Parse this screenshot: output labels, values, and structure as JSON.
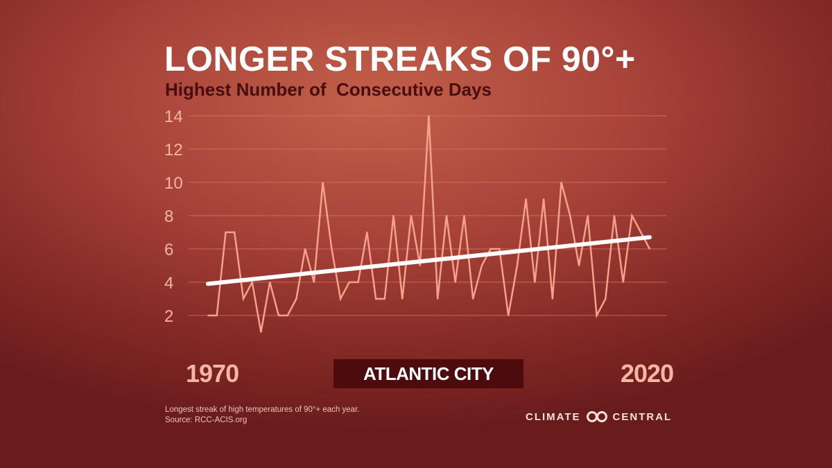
{
  "chart_data": {
    "type": "line",
    "title": "LONGER STREAKS OF 90°+",
    "subtitle": "Highest Number of  Consecutive Days",
    "x_start_label": "1970",
    "x_end_label": "2020",
    "location": "ATLANTIC CITY",
    "ylim": [
      0,
      14
    ],
    "y_ticks": [
      "2",
      "4",
      "6",
      "8",
      "10",
      "12",
      "14"
    ],
    "grid": true,
    "x": [
      1970,
      1971,
      1972,
      1973,
      1974,
      1975,
      1976,
      1977,
      1978,
      1979,
      1980,
      1981,
      1982,
      1983,
      1984,
      1985,
      1986,
      1987,
      1988,
      1989,
      1990,
      1991,
      1992,
      1993,
      1994,
      1995,
      1996,
      1997,
      1998,
      1999,
      2000,
      2001,
      2002,
      2003,
      2004,
      2005,
      2006,
      2007,
      2008,
      2009,
      2010,
      2011,
      2012,
      2013,
      2014,
      2015,
      2016,
      2017,
      2018,
      2019,
      2020
    ],
    "values": [
      2,
      2,
      7,
      7,
      3,
      4,
      1,
      4,
      2,
      2,
      3,
      6,
      4,
      10,
      6,
      3,
      4,
      4,
      7,
      3,
      3,
      8,
      3,
      8,
      5,
      14,
      3,
      8,
      4,
      8,
      3,
      5,
      6,
      6,
      2,
      5,
      9,
      4,
      9,
      3,
      10,
      8,
      5,
      8,
      2,
      3,
      8,
      4,
      8,
      7,
      6
    ],
    "trend": {
      "start": 3.9,
      "end": 6.7
    },
    "line_color": "#f4a28c",
    "trend_color": "#ffffff"
  },
  "footnote": {
    "line1": "Longest streak of high temperatures of 90°+ each year.",
    "line2": "Source: RCC-ACIS.org"
  },
  "brand": {
    "left": "CLIMATE",
    "right": "CENTRAL"
  }
}
